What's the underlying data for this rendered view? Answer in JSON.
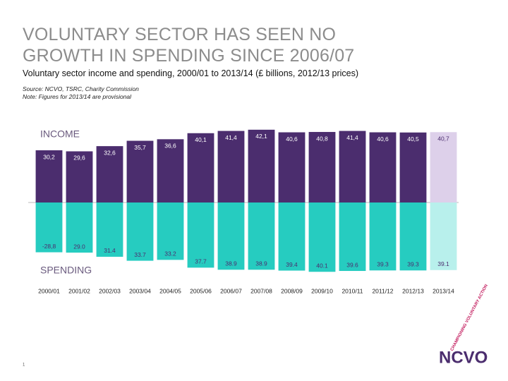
{
  "title": "VOLUNTARY SECTOR HAS SEEN NO GROWTH IN SPENDING SINCE 2006/07",
  "page_number": "1",
  "logo": {
    "name": "NCVO",
    "tagline": "CHAMPIONING VOLUNTARY ACTION"
  },
  "chart_data": {
    "type": "bar",
    "subtitle": "Voluntary sector income and spending, 2000/01 to 2013/14 (£ billions, 2012/13 prices)",
    "source": "Source: NCVO, TSRC, Charity Commission",
    "note": "Note: Figures for 2013/14 are provisional",
    "categories": [
      "2000/01",
      "2001/02",
      "2002/03",
      "2003/04",
      "2004/05",
      "2005/06",
      "2006/07",
      "2007/08",
      "2008/09",
      "2009/10",
      "2010/11",
      "2011/12",
      "2012/13",
      "2013/14"
    ],
    "series": [
      {
        "name": "INCOME",
        "direction": "up",
        "colors": [
          "#4b2d6e",
          "#4b2d6e",
          "#4b2d6e",
          "#4b2d6e",
          "#4b2d6e",
          "#4b2d6e",
          "#4b2d6e",
          "#4b2d6e",
          "#4b2d6e",
          "#4b2d6e",
          "#4b2d6e",
          "#4b2d6e",
          "#4b2d6e",
          "#ddd0ea"
        ],
        "values": [
          30.2,
          29.6,
          32.6,
          35.7,
          36.6,
          40.1,
          41.4,
          42.1,
          40.6,
          40.8,
          41.4,
          40.6,
          40.5,
          40.7
        ],
        "value_labels": [
          "30,2",
          "29,6",
          "32,6",
          "35,7",
          "36,6",
          "40,1",
          "41,4",
          "42,1",
          "40,6",
          "40,8",
          "41,4",
          "40,6",
          "40,5",
          "40,7"
        ]
      },
      {
        "name": "SPENDING",
        "direction": "down",
        "colors": [
          "#26ccc0",
          "#26ccc0",
          "#26ccc0",
          "#26ccc0",
          "#26ccc0",
          "#26ccc0",
          "#26ccc0",
          "#26ccc0",
          "#26ccc0",
          "#26ccc0",
          "#26ccc0",
          "#26ccc0",
          "#26ccc0",
          "#b8f0ec"
        ],
        "values": [
          -28.8,
          29.0,
          31.4,
          33.7,
          33.2,
          37.7,
          38.9,
          38.9,
          39.4,
          40.1,
          39.6,
          39.3,
          39.3,
          39.1
        ],
        "value_labels": [
          "-28,8",
          "29.0",
          "31.4",
          "33.7",
          "33.2",
          "37.7",
          "38.9",
          "38.9",
          "39.4",
          "40.1",
          "39.6",
          "39.3",
          "39.3",
          "39.1"
        ]
      }
    ]
  }
}
